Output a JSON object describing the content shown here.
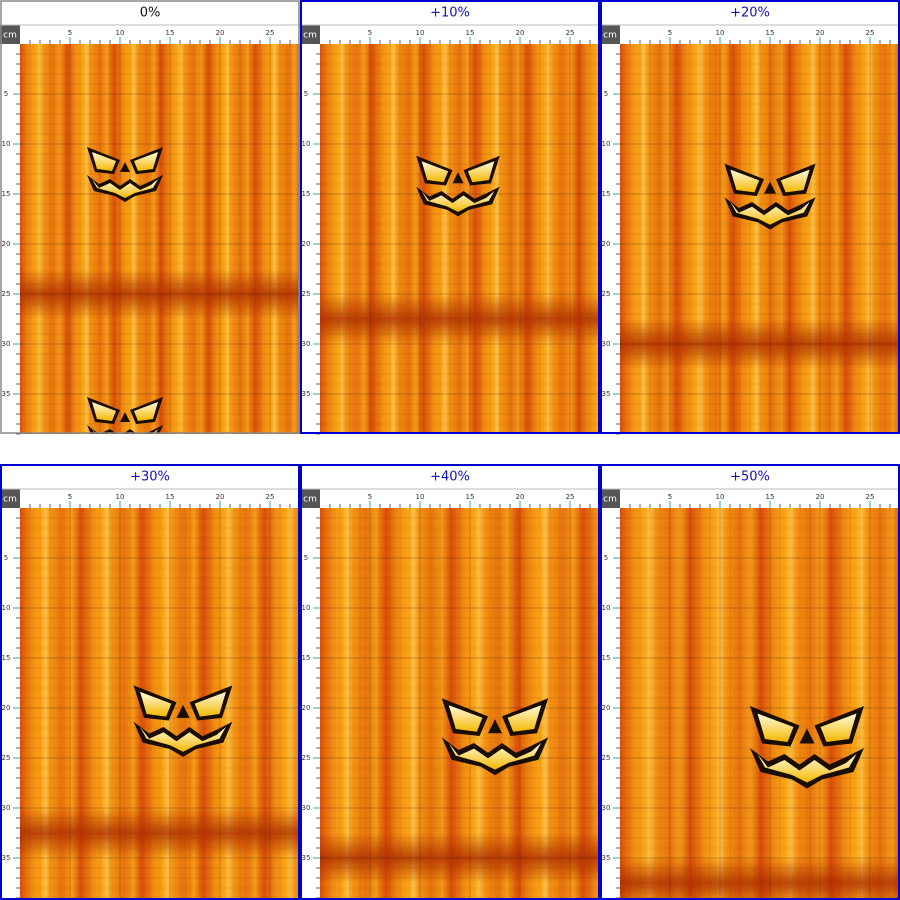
{
  "panels": [
    {
      "label": "0%"
    },
    {
      "label": "+10%"
    },
    {
      "label": "+20%"
    },
    {
      "label": "+30%"
    },
    {
      "label": "+40%"
    },
    {
      "label": "+50%"
    }
  ],
  "ruler": {
    "unit": "cm",
    "x_labels": [
      5,
      10,
      15,
      20,
      25
    ],
    "y_labels": [
      5,
      10,
      15,
      20,
      25,
      30,
      35
    ]
  }
}
